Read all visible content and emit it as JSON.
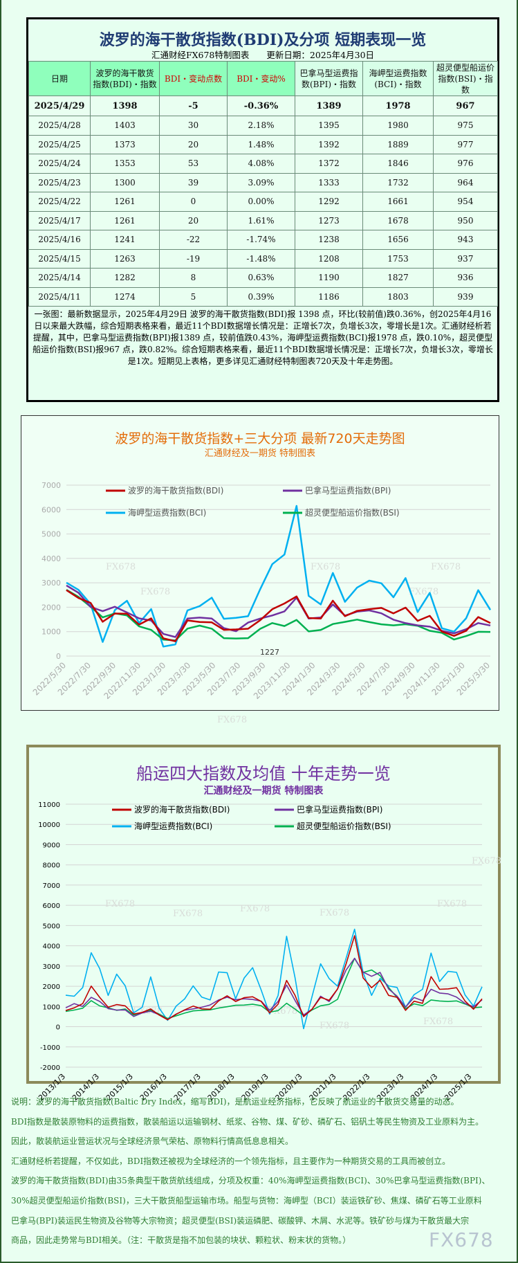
{
  "table": {
    "title": "波罗的海干散货指数(BDI)及分项 短期表现一览",
    "subtitle": "汇通财经FX678特制图表　　更新日期：2025年4月30日",
    "headers": [
      "日期",
      "波罗的海干散货指数(BDI)・指数",
      "BDI・变动点数",
      "BDI・变动%",
      "巴拿马型运费指数(BPI)・指数",
      "海岬型运费指数(BCI)・指数",
      "超灵便型船运价指数(BSI)・指数"
    ],
    "rows": [
      [
        "2025/4/29",
        "1398",
        "-5",
        "-0.36%",
        "1389",
        "1978",
        "967"
      ],
      [
        "2025/4/28",
        "1403",
        "30",
        "2.18%",
        "1395",
        "1980",
        "975"
      ],
      [
        "2025/4/25",
        "1373",
        "20",
        "1.48%",
        "1392",
        "1889",
        "977"
      ],
      [
        "2025/4/24",
        "1353",
        "53",
        "4.08%",
        "1372",
        "1846",
        "976"
      ],
      [
        "2025/4/23",
        "1300",
        "39",
        "3.09%",
        "1333",
        "1732",
        "964"
      ],
      [
        "2025/4/22",
        "1261",
        "0",
        "0.00%",
        "1292",
        "1661",
        "954"
      ],
      [
        "2025/4/17",
        "1261",
        "20",
        "1.61%",
        "1273",
        "1678",
        "950"
      ],
      [
        "2025/4/16",
        "1241",
        "-22",
        "-1.74%",
        "1238",
        "1656",
        "943"
      ],
      [
        "2025/4/15",
        "1263",
        "-19",
        "-1.48%",
        "1208",
        "1753",
        "937"
      ],
      [
        "2025/4/14",
        "1282",
        "8",
        "0.63%",
        "1190",
        "1827",
        "936"
      ],
      [
        "2025/4/11",
        "1274",
        "5",
        "0.39%",
        "1186",
        "1803",
        "939"
      ]
    ],
    "note": "一张图：最新数据显示，2025年4月29日 波罗的海干散货指数(BDI)报 1398 点，环比(较前值)跌0.36%，创2025年4月16日以来最大跌幅，综合短期表格来看，最近11个BDI数据增长情况是：正增长7次，负增长3次，零增长是1次。汇通财经析若提醒，其中，巴拿马型运费指数(BPI)报1389 点，较前值跌0.43%，海岬型运费指数(BCI)报1978 点，跌0.10%，超灵便型船运价指数(BSI)报967 点，跌0.82%。综合短期表格来看，最近11个BDI数据增长情况是：正增长7次，负增长3次，零增长是1次。短期见上表格，更多详见汇通财经特制图表720天及十年走势图。"
  },
  "colors": {
    "BDI": "#c00000",
    "BPI": "#7030a0",
    "BCI": "#00b0f0",
    "BSI": "#00b050",
    "title1": "#e36c09",
    "title2": "#7030a0"
  },
  "watermark": "FX678",
  "chart_data": [
    {
      "type": "line",
      "title": "波罗的海干散货指数+三大分项  最新720天走势图",
      "subtitle": "汇通财经及一期货  特制图表",
      "ylim": [
        0,
        7000
      ],
      "yticks": [
        "0",
        "1000",
        "2000",
        "3000",
        "4000",
        "5000",
        "6000",
        "7000"
      ],
      "grid": true,
      "legend": "top",
      "xticks": [
        "2022/5/30",
        "2022/7/30",
        "2022/9/30",
        "2022/11/30",
        "2023/1/30",
        "2023/3/30",
        "2023/5/30",
        "2023/7/30",
        "2023/9/30",
        "2023/11/30",
        "2024/1/30",
        "2024/3/30",
        "2024/5/30",
        "2024/7/30",
        "2024/9/30",
        "2024/11/30",
        "2025/1/30",
        "2025/3/30"
      ],
      "annotation": "1227",
      "x": [
        "2022/5",
        "2022/6",
        "2022/7",
        "2022/8",
        "2022/9",
        "2022/10",
        "2022/11",
        "2022/12",
        "2023/1",
        "2023/2",
        "2023/3",
        "2023/4",
        "2023/5",
        "2023/6",
        "2023/7",
        "2023/8",
        "2023/9",
        "2023/10",
        "2023/11",
        "2023/12",
        "2024/1",
        "2024/2",
        "2024/3",
        "2024/4",
        "2024/5",
        "2024/6",
        "2024/7",
        "2024/8",
        "2024/9",
        "2024/10",
        "2024/11",
        "2024/12",
        "2025/1",
        "2025/2",
        "2025/3",
        "2025/4"
      ],
      "series": [
        {
          "name": "波罗的海干散货指数(BDI)",
          "key": "BDI",
          "values": [
            2700,
            2300,
            2100,
            1400,
            1800,
            1800,
            1300,
            1500,
            700,
            600,
            1500,
            1450,
            1400,
            1050,
            1050,
            1100,
            1500,
            2000,
            2200,
            2400,
            1500,
            1500,
            2300,
            1700,
            1900,
            1900,
            1900,
            1700,
            2000,
            1500,
            1700,
            1000,
            800,
            1000,
            1600,
            1400
          ]
        },
        {
          "name": "巴拿马型运费指数(BPI)",
          "key": "BPI",
          "values": [
            2800,
            2500,
            2000,
            1900,
            2100,
            1800,
            1500,
            1400,
            900,
            800,
            1600,
            1600,
            1500,
            1100,
            1000,
            1400,
            1600,
            1700,
            1800,
            2300,
            1500,
            1600,
            2200,
            1700,
            1800,
            1800,
            1700,
            1500,
            1400,
            1300,
            1200,
            1000,
            900,
            1100,
            1400,
            1300
          ]
        },
        {
          "name": "海岬型运费指数(BCI)",
          "key": "BCI",
          "values": [
            2900,
            2700,
            2200,
            600,
            1900,
            2200,
            1300,
            1900,
            400,
            500,
            1900,
            2000,
            2300,
            1500,
            1600,
            1700,
            2800,
            3700,
            4000,
            6000,
            2500,
            2200,
            3500,
            2200,
            2700,
            3000,
            3000,
            2500,
            3300,
            1800,
            2500,
            1100,
            1000,
            1600,
            2800,
            1900
          ]
        },
        {
          "name": "超灵便型船运价指数(BSI)",
          "key": "BSI",
          "values": [
            2700,
            2500,
            2100,
            1600,
            1700,
            1600,
            1200,
            1100,
            700,
            650,
            1100,
            1200,
            1100,
            750,
            750,
            750,
            1100,
            1300,
            1200,
            1500,
            1050,
            1100,
            1300,
            1350,
            1450,
            1400,
            1350,
            1300,
            1300,
            1200,
            1000,
            950,
            700,
            850,
            1000,
            960
          ]
        }
      ]
    },
    {
      "type": "line",
      "title": "船运四大指数及均值 十年走势一览",
      "subtitle": "汇通财经及一期货 特制图表",
      "ylim": [
        -2000,
        11000
      ],
      "yticks": [
        "-2000",
        "-1000",
        "0",
        "1000",
        "2000",
        "3000",
        "4000",
        "5000",
        "6000",
        "7000",
        "8000",
        "9000",
        "10000",
        "11000"
      ],
      "grid": true,
      "legend": "top",
      "xticks": [
        "2013/1/3",
        "2014/1/3",
        "2015/1/3",
        "2016/1/3",
        "2017/1/3",
        "2018/1/3",
        "2019/1/3",
        "2020/1/3",
        "2021/1/3",
        "2022/1/3",
        "2023/1/3",
        "2024/1/3",
        "2025/1/3"
      ],
      "series": [
        {
          "name": "波罗的海干散货指数(BDI)",
          "key": "BDI",
          "values": [
            800,
            900,
            1100,
            2000,
            1500,
            1000,
            1100,
            1000,
            600,
            700,
            900,
            600,
            350,
            600,
            800,
            1000,
            900,
            900,
            1300,
            1500,
            1200,
            1400,
            1500,
            1300,
            700,
            1100,
            2200,
            1500,
            500,
            900,
            1500,
            1300,
            1800,
            3000,
            4500,
            2500,
            2000,
            2300,
            1500,
            1400,
            800,
            1300,
            1200,
            2500,
            1800,
            1800,
            1900,
            1300,
            900,
            1400
          ]
        },
        {
          "name": "巴拿马型运费指数(BPI)",
          "key": "BPI",
          "values": [
            900,
            1100,
            1000,
            1500,
            1300,
            900,
            800,
            800,
            500,
            700,
            800,
            600,
            350,
            600,
            800,
            900,
            1000,
            1100,
            1300,
            1400,
            1300,
            1400,
            1400,
            1300,
            800,
            1200,
            2000,
            1300,
            600,
            900,
            1500,
            1200,
            1800,
            2800,
            3500,
            2800,
            2500,
            2600,
            1800,
            1500,
            1000,
            1500,
            1300,
            1800,
            1600,
            1600,
            1500,
            1200,
            1000,
            1300
          ]
        },
        {
          "name": "海岬型运费指数(BCI)",
          "key": "BCI",
          "values": [
            1500,
            1500,
            2000,
            3800,
            2900,
            1500,
            2500,
            2000,
            700,
            1000,
            2500,
            900,
            300,
            1000,
            1400,
            2100,
            1500,
            1300,
            2600,
            2600,
            1400,
            2500,
            3000,
            1800,
            600,
            1500,
            4500,
            2500,
            -100,
            1500,
            3000,
            2300,
            2000,
            3500,
            5000,
            2700,
            1500,
            2300,
            2000,
            2000,
            1000,
            1600,
            1800,
            3500,
            2200,
            2800,
            2800,
            1600,
            1000,
            1900
          ]
        },
        {
          "name": "超灵便型船运价指数(BSI)",
          "key": "BSI",
          "values": [
            750,
            850,
            950,
            1300,
            1000,
            900,
            800,
            900,
            600,
            700,
            800,
            600,
            400,
            550,
            700,
            800,
            800,
            800,
            900,
            1000,
            1100,
            1100,
            1100,
            1000,
            700,
            800,
            1200,
            900,
            550,
            800,
            1000,
            1100,
            1400,
            2500,
            3400,
            2600,
            2700,
            2500,
            2000,
            1500,
            900,
            1100,
            1000,
            1300,
            1300,
            1300,
            1300,
            1100,
            900,
            950
          ]
        }
      ]
    }
  ],
  "description": [
    "说明：波罗的海干散货指数(Baltic Dry Index，缩写BDI)，是航运业经济指标，它反映了航运业的干散货交易量的动态。",
    "BDI指数是散装原物料的运费指数，散装船运以运输钢材、纸浆、谷物、煤、矿砂、磷矿石、铝矾土等民生物资及工业原料为主。",
    "因此，散装航运业营运状况与全球经济景气荣枯、原物料行情高低息息相关。",
    "汇通财经析若提醒，不仅如此，BDI指数还被视为全球经济的一个领先指标，且主要作为一种期货交易的工具而被创立。",
    "波罗的海干散货指数(BDI)由35条典型干散货航线组成，分项及权重：40%海岬型运费指数(BCI)、30%巴拿马型运费指数(BPI)、",
    "30%超灵便型船运价指数(BSI)，三大干散货船型运输市场。船型与货物：海岬型（BCI）装运铁矿砂、焦煤、磷矿石等工业原料",
    "巴拿马(BPI)装运民生物资及谷物等大宗物资；超灵便型(BSI)装运磷肥、碳酸钾、木屑、水泥等。铁矿砂与煤为干散货最大宗",
    "商品，因此走势常与BDI相关。（注：干散货是指不加包装的块状、颗粒状、粉末状的货物。）"
  ]
}
